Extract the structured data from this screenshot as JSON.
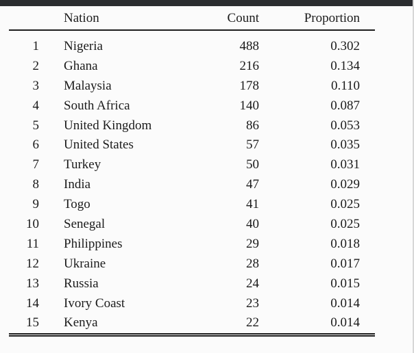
{
  "colors": {
    "top_bar": "#2b2d30",
    "background": "#fbfbfb",
    "text": "#1b1b1b",
    "rule": "#1c1c1c",
    "right_edge": "#d7d7d7"
  },
  "table": {
    "headers": {
      "rank_label": "",
      "nation_label": "Nation",
      "count_label": "Count",
      "proportion_label": "Proportion"
    },
    "rows": [
      {
        "rank": "1",
        "nation": "Nigeria",
        "count": "488",
        "proportion": "0.302"
      },
      {
        "rank": "2",
        "nation": "Ghana",
        "count": "216",
        "proportion": "0.134"
      },
      {
        "rank": "3",
        "nation": "Malaysia",
        "count": "178",
        "proportion": "0.110"
      },
      {
        "rank": "4",
        "nation": "South Africa",
        "count": "140",
        "proportion": "0.087"
      },
      {
        "rank": "5",
        "nation": "United Kingdom",
        "count": "86",
        "proportion": "0.053"
      },
      {
        "rank": "6",
        "nation": "United States",
        "count": "57",
        "proportion": "0.035"
      },
      {
        "rank": "7",
        "nation": "Turkey",
        "count": "50",
        "proportion": "0.031"
      },
      {
        "rank": "8",
        "nation": "India",
        "count": "47",
        "proportion": "0.029"
      },
      {
        "rank": "9",
        "nation": "Togo",
        "count": "41",
        "proportion": "0.025"
      },
      {
        "rank": "10",
        "nation": "Senegal",
        "count": "40",
        "proportion": "0.025"
      },
      {
        "rank": "11",
        "nation": "Philippines",
        "count": "29",
        "proportion": "0.018"
      },
      {
        "rank": "12",
        "nation": "Ukraine",
        "count": "28",
        "proportion": "0.017"
      },
      {
        "rank": "13",
        "nation": "Russia",
        "count": "24",
        "proportion": "0.015"
      },
      {
        "rank": "14",
        "nation": "Ivory Coast",
        "count": "23",
        "proportion": "0.014"
      },
      {
        "rank": "15",
        "nation": "Kenya",
        "count": "22",
        "proportion": "0.014"
      }
    ]
  }
}
